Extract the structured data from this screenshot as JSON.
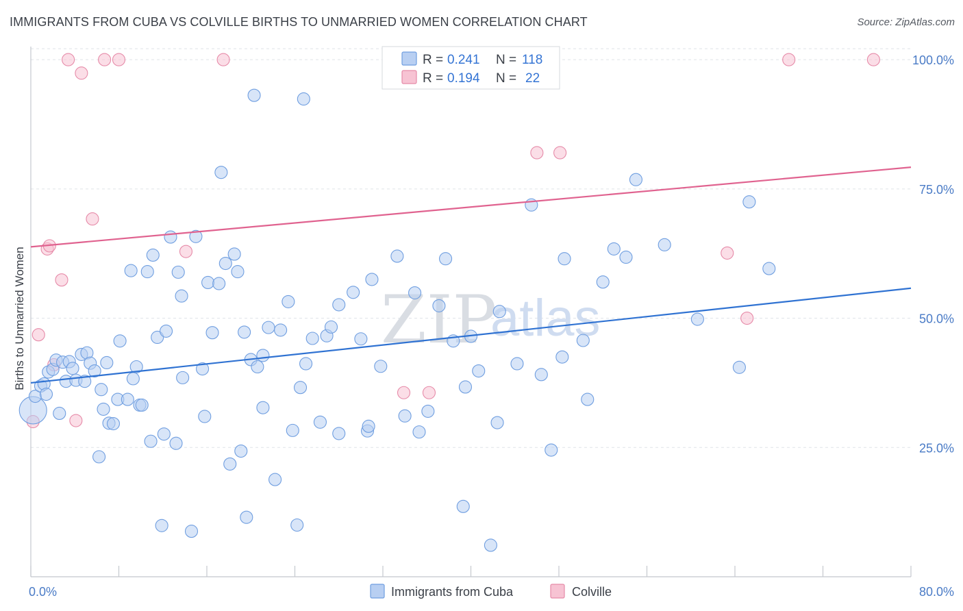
{
  "header": {
    "title": "IMMIGRANTS FROM CUBA VS COLVILLE BIRTHS TO UNMARRIED WOMEN CORRELATION CHART",
    "source": "Source: ZipAtlas.com"
  },
  "watermark": {
    "zip": "ZIP",
    "atlas": "atlas"
  },
  "legend": {
    "r_label": "R =",
    "n_label": "N =",
    "rows": [
      {
        "name": "Immigrants from Cuba",
        "r": "0.241",
        "n": "118"
      },
      {
        "name": "Colville",
        "r": "0.194",
        "n": "22"
      }
    ]
  },
  "colors": {
    "blue_fill": "#b8cff2",
    "blue_stroke": "#6f9ee0",
    "blue_line": "#2f72d2",
    "pink_fill": "#f7c3d3",
    "pink_stroke": "#e68aa8",
    "pink_line": "#e0628f",
    "grid": "#dfe3e8",
    "axis": "#c4c8ce",
    "tick_label": "#4a7bc6"
  },
  "chart_data": {
    "type": "scatter",
    "title": "IMMIGRANTS FROM CUBA VS COLVILLE BIRTHS TO UNMARRIED WOMEN CORRELATION CHART",
    "xlabel": "",
    "ylabel": "Births to Unmarried Women",
    "xlim": [
      0,
      80
    ],
    "ylim": [
      0,
      102
    ],
    "x_tick_labels": [
      "0.0%",
      "80.0%"
    ],
    "y_ticks": [
      25,
      50,
      75,
      100
    ],
    "y_tick_labels": [
      "25.0%",
      "50.0%",
      "75.0%",
      "100.0%"
    ],
    "grid": true,
    "legend_position": "top-center",
    "series": [
      {
        "name": "Immigrants from Cuba",
        "trend": {
          "x": [
            0,
            80
          ],
          "y": [
            37.5,
            55.8
          ]
        },
        "points": [
          {
            "x": 0.2,
            "y": 32.2,
            "big": true
          },
          {
            "x": 0.4,
            "y": 34.9
          },
          {
            "x": 0.9,
            "y": 36.9
          },
          {
            "x": 1.2,
            "y": 37.3
          },
          {
            "x": 1.4,
            "y": 35.3
          },
          {
            "x": 1.6,
            "y": 39.6
          },
          {
            "x": 2.0,
            "y": 40.1
          },
          {
            "x": 2.3,
            "y": 41.9
          },
          {
            "x": 2.6,
            "y": 31.6
          },
          {
            "x": 2.9,
            "y": 41.5
          },
          {
            "x": 3.2,
            "y": 37.8
          },
          {
            "x": 3.5,
            "y": 41.6
          },
          {
            "x": 3.8,
            "y": 40.3
          },
          {
            "x": 4.1,
            "y": 38.0
          },
          {
            "x": 4.6,
            "y": 43.0
          },
          {
            "x": 4.9,
            "y": 37.8
          },
          {
            "x": 5.1,
            "y": 43.3
          },
          {
            "x": 5.4,
            "y": 41.3
          },
          {
            "x": 5.8,
            "y": 39.8
          },
          {
            "x": 6.2,
            "y": 23.2
          },
          {
            "x": 6.4,
            "y": 36.2
          },
          {
            "x": 6.6,
            "y": 32.4
          },
          {
            "x": 6.9,
            "y": 41.4
          },
          {
            "x": 7.1,
            "y": 29.7
          },
          {
            "x": 7.5,
            "y": 29.6
          },
          {
            "x": 7.9,
            "y": 34.3
          },
          {
            "x": 8.1,
            "y": 45.6
          },
          {
            "x": 8.8,
            "y": 34.3
          },
          {
            "x": 9.1,
            "y": 59.2
          },
          {
            "x": 9.3,
            "y": 38.3
          },
          {
            "x": 9.6,
            "y": 40.6
          },
          {
            "x": 9.9,
            "y": 33.2
          },
          {
            "x": 10.1,
            "y": 33.2
          },
          {
            "x": 10.6,
            "y": 59.0
          },
          {
            "x": 10.9,
            "y": 26.2
          },
          {
            "x": 11.1,
            "y": 62.2
          },
          {
            "x": 11.5,
            "y": 46.3
          },
          {
            "x": 11.9,
            "y": 9.9
          },
          {
            "x": 12.1,
            "y": 27.6
          },
          {
            "x": 12.3,
            "y": 47.5
          },
          {
            "x": 12.7,
            "y": 65.7
          },
          {
            "x": 13.2,
            "y": 25.8
          },
          {
            "x": 13.4,
            "y": 58.9
          },
          {
            "x": 13.7,
            "y": 54.3
          },
          {
            "x": 13.8,
            "y": 38.5
          },
          {
            "x": 14.6,
            "y": 8.8
          },
          {
            "x": 15.0,
            "y": 65.8
          },
          {
            "x": 15.6,
            "y": 40.2
          },
          {
            "x": 15.8,
            "y": 31.0
          },
          {
            "x": 16.1,
            "y": 56.9
          },
          {
            "x": 16.5,
            "y": 47.2
          },
          {
            "x": 17.1,
            "y": 56.7
          },
          {
            "x": 17.3,
            "y": 78.2
          },
          {
            "x": 17.7,
            "y": 60.6
          },
          {
            "x": 18.1,
            "y": 21.8
          },
          {
            "x": 18.5,
            "y": 62.4
          },
          {
            "x": 18.8,
            "y": 59.0
          },
          {
            "x": 19.1,
            "y": 24.3
          },
          {
            "x": 19.4,
            "y": 47.3
          },
          {
            "x": 19.6,
            "y": 11.5
          },
          {
            "x": 20.0,
            "y": 42.0
          },
          {
            "x": 20.3,
            "y": 93.1
          },
          {
            "x": 20.6,
            "y": 40.6
          },
          {
            "x": 21.1,
            "y": 32.7
          },
          {
            "x": 21.1,
            "y": 42.8
          },
          {
            "x": 21.6,
            "y": 48.2
          },
          {
            "x": 22.2,
            "y": 18.8
          },
          {
            "x": 22.7,
            "y": 47.7
          },
          {
            "x": 23.4,
            "y": 53.2
          },
          {
            "x": 23.8,
            "y": 28.3
          },
          {
            "x": 24.2,
            "y": 10.0
          },
          {
            "x": 24.5,
            "y": 36.6
          },
          {
            "x": 24.8,
            "y": 92.4
          },
          {
            "x": 25.0,
            "y": 41.2
          },
          {
            "x": 25.6,
            "y": 46.1
          },
          {
            "x": 26.3,
            "y": 29.9
          },
          {
            "x": 26.9,
            "y": 46.6
          },
          {
            "x": 27.3,
            "y": 48.3
          },
          {
            "x": 28.0,
            "y": 27.7
          },
          {
            "x": 28.0,
            "y": 52.6
          },
          {
            "x": 29.3,
            "y": 55.0
          },
          {
            "x": 30.0,
            "y": 46.0
          },
          {
            "x": 30.6,
            "y": 28.2
          },
          {
            "x": 30.7,
            "y": 29.1
          },
          {
            "x": 31.0,
            "y": 57.5
          },
          {
            "x": 31.8,
            "y": 40.7
          },
          {
            "x": 33.3,
            "y": 62.0
          },
          {
            "x": 34.0,
            "y": 31.1
          },
          {
            "x": 34.9,
            "y": 54.9
          },
          {
            "x": 35.3,
            "y": 28.0
          },
          {
            "x": 36.1,
            "y": 32.0
          },
          {
            "x": 37.1,
            "y": 52.4
          },
          {
            "x": 37.7,
            "y": 61.5
          },
          {
            "x": 38.4,
            "y": 45.6
          },
          {
            "x": 39.3,
            "y": 13.6
          },
          {
            "x": 39.5,
            "y": 36.7
          },
          {
            "x": 40.0,
            "y": 46.5
          },
          {
            "x": 40.7,
            "y": 39.8
          },
          {
            "x": 41.8,
            "y": 6.1
          },
          {
            "x": 42.4,
            "y": 29.8
          },
          {
            "x": 42.6,
            "y": 51.3
          },
          {
            "x": 44.2,
            "y": 41.2
          },
          {
            "x": 45.5,
            "y": 71.9
          },
          {
            "x": 46.4,
            "y": 39.1
          },
          {
            "x": 47.3,
            "y": 24.5
          },
          {
            "x": 48.3,
            "y": 42.5
          },
          {
            "x": 48.5,
            "y": 61.5
          },
          {
            "x": 50.2,
            "y": 45.7
          },
          {
            "x": 50.6,
            "y": 34.3
          },
          {
            "x": 52.0,
            "y": 57.0
          },
          {
            "x": 53.0,
            "y": 63.4
          },
          {
            "x": 54.1,
            "y": 61.8
          },
          {
            "x": 55.0,
            "y": 76.8
          },
          {
            "x": 57.6,
            "y": 64.2
          },
          {
            "x": 60.6,
            "y": 49.8
          },
          {
            "x": 64.4,
            "y": 40.5
          },
          {
            "x": 65.3,
            "y": 72.5
          },
          {
            "x": 67.1,
            "y": 59.6
          }
        ]
      },
      {
        "name": "Colville",
        "trend": {
          "x": [
            0,
            80
          ],
          "y": [
            63.8,
            79.2
          ]
        },
        "points": [
          {
            "x": 0.2,
            "y": 30.0
          },
          {
            "x": 0.7,
            "y": 46.8
          },
          {
            "x": 1.5,
            "y": 63.4
          },
          {
            "x": 1.7,
            "y": 64.0
          },
          {
            "x": 2.1,
            "y": 41.0
          },
          {
            "x": 2.8,
            "y": 57.4
          },
          {
            "x": 3.4,
            "y": 100.0
          },
          {
            "x": 4.1,
            "y": 30.2
          },
          {
            "x": 4.6,
            "y": 97.4
          },
          {
            "x": 5.6,
            "y": 69.2
          },
          {
            "x": 6.7,
            "y": 100.0
          },
          {
            "x": 8.0,
            "y": 100.0
          },
          {
            "x": 14.1,
            "y": 62.9
          },
          {
            "x": 17.5,
            "y": 100.0
          },
          {
            "x": 33.9,
            "y": 35.6
          },
          {
            "x": 36.2,
            "y": 35.6
          },
          {
            "x": 46.0,
            "y": 82.0
          },
          {
            "x": 48.1,
            "y": 82.0
          },
          {
            "x": 63.3,
            "y": 62.6
          },
          {
            "x": 65.1,
            "y": 50.0
          },
          {
            "x": 68.9,
            "y": 100.0
          },
          {
            "x": 76.6,
            "y": 100.0
          }
        ]
      }
    ]
  }
}
